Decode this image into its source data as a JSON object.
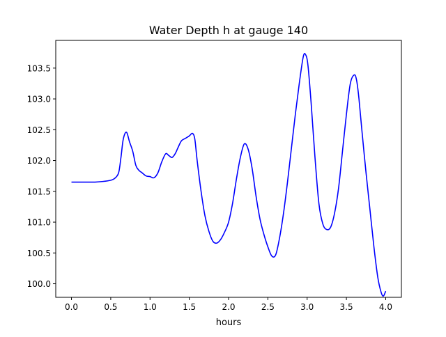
{
  "chart_data": {
    "type": "line",
    "title": "Water Depth h at gauge 140",
    "xlabel": "hours",
    "ylabel": "",
    "xlim": [
      -0.2,
      4.2
    ],
    "ylim": [
      99.78,
      103.95
    ],
    "grid": false,
    "xticks": [
      0.0,
      0.5,
      1.0,
      1.5,
      2.0,
      2.5,
      3.0,
      3.5,
      4.0
    ],
    "xtick_labels": [
      "0.0",
      "0.5",
      "1.0",
      "1.5",
      "2.0",
      "2.5",
      "3.0",
      "3.5",
      "4.0"
    ],
    "yticks": [
      100.0,
      100.5,
      101.0,
      101.5,
      102.0,
      102.5,
      103.0,
      103.5
    ],
    "ytick_labels": [
      "100.0",
      "100.5",
      "101.0",
      "101.5",
      "102.0",
      "102.5",
      "103.0",
      "103.5"
    ],
    "series": [
      {
        "color": "#0000ff",
        "x": [
          0.0,
          0.1,
          0.2,
          0.3,
          0.4,
          0.5,
          0.55,
          0.6,
          0.63,
          0.66,
          0.7,
          0.74,
          0.78,
          0.82,
          0.86,
          0.9,
          0.95,
          1.0,
          1.05,
          1.1,
          1.15,
          1.2,
          1.24,
          1.28,
          1.32,
          1.36,
          1.4,
          1.45,
          1.5,
          1.54,
          1.57,
          1.6,
          1.65,
          1.7,
          1.75,
          1.8,
          1.85,
          1.9,
          1.95,
          2.0,
          2.05,
          2.1,
          2.15,
          2.2,
          2.25,
          2.3,
          2.35,
          2.4,
          2.45,
          2.5,
          2.55,
          2.6,
          2.65,
          2.7,
          2.75,
          2.8,
          2.85,
          2.9,
          2.95,
          2.98,
          3.01,
          3.05,
          3.1,
          3.15,
          3.2,
          3.25,
          3.3,
          3.35,
          3.4,
          3.45,
          3.5,
          3.55,
          3.6,
          3.63,
          3.66,
          3.7,
          3.75,
          3.8,
          3.85,
          3.9,
          3.94,
          3.97,
          4.0
        ],
        "y": [
          101.65,
          101.65,
          101.65,
          101.65,
          101.66,
          101.68,
          101.71,
          101.8,
          102.05,
          102.35,
          102.46,
          102.3,
          102.15,
          101.92,
          101.84,
          101.8,
          101.75,
          101.74,
          101.72,
          101.8,
          101.98,
          102.11,
          102.08,
          102.05,
          102.11,
          102.22,
          102.32,
          102.36,
          102.4,
          102.44,
          102.35,
          102.0,
          101.5,
          101.1,
          100.85,
          100.69,
          100.66,
          100.72,
          100.84,
          101.0,
          101.3,
          101.7,
          102.05,
          102.27,
          102.18,
          101.87,
          101.42,
          101.05,
          100.8,
          100.6,
          100.45,
          100.47,
          100.75,
          101.15,
          101.65,
          102.2,
          102.75,
          103.25,
          103.68,
          103.72,
          103.55,
          102.95,
          102.05,
          101.3,
          100.97,
          100.88,
          100.92,
          101.15,
          101.55,
          102.15,
          102.75,
          103.25,
          103.39,
          103.3,
          103.0,
          102.45,
          101.8,
          101.2,
          100.6,
          100.1,
          99.87,
          99.8,
          99.88
        ]
      }
    ]
  }
}
